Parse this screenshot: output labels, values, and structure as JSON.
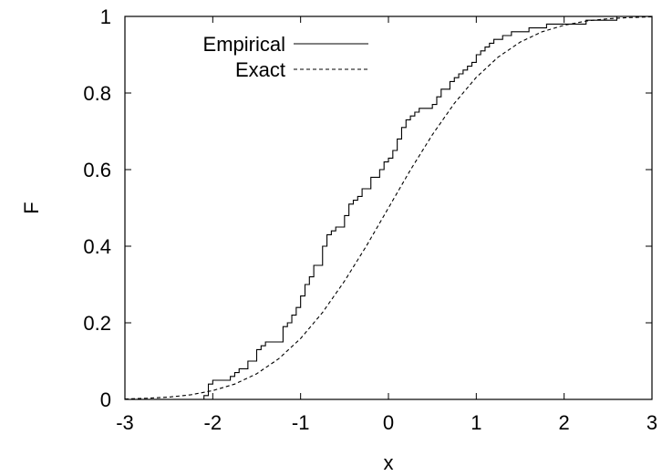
{
  "chart_data": {
    "type": "line",
    "title": "",
    "xlabel": "x",
    "ylabel": "F",
    "xlim": [
      -3,
      3
    ],
    "ylim": [
      0,
      1
    ],
    "xticks": [
      -3,
      -2,
      -1,
      0,
      1,
      2,
      3
    ],
    "yticks": [
      0,
      0.2,
      0.4,
      0.6,
      0.8,
      1
    ],
    "xtick_labels": [
      "-3",
      "-2",
      "-1",
      "0",
      "1",
      "2",
      "3"
    ],
    "ytick_labels": [
      "0",
      "0.2",
      "0.4",
      "0.6",
      "0.8",
      "1"
    ],
    "grid": false,
    "legend_position": "top-left",
    "series": [
      {
        "name": "Empirical",
        "style": "solid",
        "step": true,
        "x": [
          -3.0,
          -2.1,
          -2.05,
          -2.0,
          -1.8,
          -1.75,
          -1.7,
          -1.6,
          -1.5,
          -1.45,
          -1.4,
          -1.2,
          -1.15,
          -1.1,
          -1.05,
          -1.0,
          -0.95,
          -0.9,
          -0.85,
          -0.75,
          -0.7,
          -0.65,
          -0.6,
          -0.5,
          -0.45,
          -0.4,
          -0.35,
          -0.3,
          -0.2,
          -0.1,
          -0.05,
          0.0,
          0.05,
          0.1,
          0.15,
          0.2,
          0.25,
          0.3,
          0.35,
          0.5,
          0.55,
          0.6,
          0.7,
          0.75,
          0.8,
          0.85,
          0.9,
          0.95,
          1.0,
          1.05,
          1.1,
          1.15,
          1.2,
          1.3,
          1.4,
          1.5,
          1.6,
          1.7,
          1.8,
          2.0,
          2.1,
          2.25,
          2.5,
          2.6,
          3.0
        ],
        "y": [
          0.0,
          0.01,
          0.04,
          0.05,
          0.06,
          0.07,
          0.08,
          0.1,
          0.13,
          0.14,
          0.15,
          0.19,
          0.2,
          0.22,
          0.24,
          0.27,
          0.3,
          0.32,
          0.35,
          0.4,
          0.43,
          0.44,
          0.45,
          0.48,
          0.51,
          0.52,
          0.53,
          0.55,
          0.58,
          0.6,
          0.62,
          0.63,
          0.65,
          0.68,
          0.71,
          0.73,
          0.74,
          0.75,
          0.76,
          0.77,
          0.79,
          0.81,
          0.83,
          0.84,
          0.85,
          0.86,
          0.87,
          0.88,
          0.9,
          0.91,
          0.92,
          0.93,
          0.94,
          0.95,
          0.96,
          0.96,
          0.97,
          0.97,
          0.98,
          0.98,
          0.98,
          0.99,
          0.99,
          1.0,
          1.0
        ]
      },
      {
        "name": "Exact",
        "style": "dashed",
        "step": false,
        "x": [
          -3.0,
          -2.75,
          -2.5,
          -2.25,
          -2.0,
          -1.75,
          -1.5,
          -1.25,
          -1.0,
          -0.75,
          -0.5,
          -0.25,
          0.0,
          0.25,
          0.5,
          0.75,
          1.0,
          1.25,
          1.5,
          1.75,
          2.0,
          2.25,
          2.5,
          2.75,
          3.0
        ],
        "y": [
          0.001,
          0.003,
          0.006,
          0.012,
          0.023,
          0.04,
          0.067,
          0.106,
          0.159,
          0.227,
          0.309,
          0.401,
          0.5,
          0.599,
          0.691,
          0.773,
          0.841,
          0.894,
          0.933,
          0.96,
          0.977,
          0.988,
          0.994,
          0.997,
          0.999
        ]
      }
    ]
  }
}
